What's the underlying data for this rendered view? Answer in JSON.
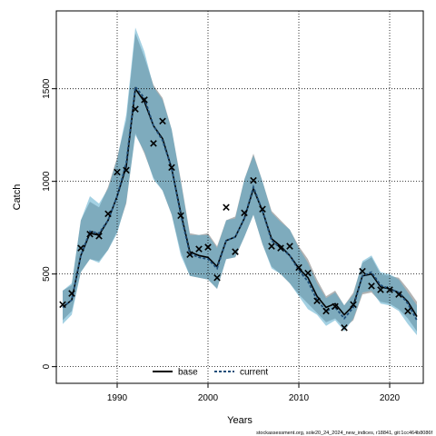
{
  "chart_data": {
    "type": "line",
    "xlabel": "Years",
    "ylabel": "Catch",
    "xlim": [
      1983.3,
      2023.7
    ],
    "ylim": [
      -90,
      1920
    ],
    "x_ticks": [
      1990,
      2000,
      2010,
      2020
    ],
    "y_ticks": [
      0,
      500,
      1000,
      1500
    ],
    "grid": true,
    "legend": {
      "position": "bottom-center",
      "entries": [
        "base",
        "current"
      ]
    },
    "caption": "stockassessment.org, sole20_24_2024_new_indices, r18841, git:1cc464b8086f",
    "colors": {
      "base_line": "#000000",
      "base_band": "#808080",
      "current_line": "#1f4e79",
      "current_band": "#4aa3c8",
      "observed": "#000000"
    },
    "x": [
      1984,
      1985,
      1986,
      1987,
      1988,
      1989,
      1990,
      1991,
      1992,
      1993,
      1994,
      1995,
      1996,
      1997,
      1998,
      1999,
      2000,
      2001,
      2002,
      2003,
      2004,
      2005,
      2006,
      2007,
      2008,
      2009,
      2010,
      2011,
      2012,
      2013,
      2014,
      2015,
      2016,
      2017,
      2018,
      2019,
      2020,
      2021,
      2022,
      2023
    ],
    "series": [
      {
        "name": "base",
        "values": [
          320,
          360,
          600,
          720,
          710,
          790,
          920,
          1080,
          1500,
          1430,
          1300,
          1230,
          1070,
          830,
          620,
          600,
          590,
          540,
          680,
          700,
          800,
          960,
          840,
          690,
          650,
          600,
          530,
          480,
          380,
          320,
          340,
          280,
          330,
          490,
          500,
          430,
          420,
          400,
          350,
          270
        ],
        "lower": [
          250,
          300,
          510,
          580,
          570,
          630,
          730,
          880,
          1260,
          1150,
          1020,
          950,
          820,
          620,
          490,
          480,
          470,
          420,
          580,
          590,
          700,
          820,
          660,
          540,
          500,
          450,
          390,
          340,
          290,
          240,
          260,
          210,
          250,
          390,
          400,
          350,
          340,
          310,
          260,
          190
        ],
        "upper": [
          410,
          440,
          790,
          890,
          860,
          970,
          1130,
          1330,
          1800,
          1670,
          1520,
          1450,
          1280,
          1010,
          720,
          710,
          720,
          650,
          790,
          810,
          1010,
          1150,
          1000,
          840,
          790,
          740,
          650,
          580,
          470,
          380,
          410,
          330,
          400,
          560,
          590,
          500,
          490,
          480,
          420,
          350
        ]
      },
      {
        "name": "current",
        "values": [
          320,
          360,
          600,
          730,
          720,
          790,
          920,
          1100,
          1510,
          1450,
          1300,
          1220,
          1070,
          820,
          610,
          590,
          580,
          530,
          680,
          700,
          800,
          970,
          840,
          680,
          640,
          600,
          520,
          460,
          360,
          300,
          320,
          260,
          320,
          490,
          510,
          440,
          420,
          400,
          340,
          250
        ],
        "lower": [
          230,
          280,
          510,
          580,
          560,
          630,
          720,
          890,
          1250,
          1160,
          1010,
          950,
          820,
          600,
          490,
          480,
          470,
          420,
          580,
          590,
          700,
          820,
          660,
          530,
          500,
          450,
          380,
          310,
          280,
          220,
          250,
          190,
          260,
          400,
          410,
          340,
          330,
          300,
          230,
          170
        ],
        "upper": [
          410,
          450,
          790,
          920,
          880,
          960,
          1120,
          1360,
          1830,
          1700,
          1510,
          1440,
          1280,
          1000,
          710,
          710,
          710,
          640,
          790,
          800,
          1010,
          1140,
          1000,
          830,
          780,
          740,
          640,
          560,
          450,
          370,
          400,
          330,
          390,
          570,
          600,
          510,
          500,
          470,
          400,
          330
        ]
      }
    ],
    "observed": {
      "x": [
        1984,
        1985,
        1986,
        1987,
        1988,
        1989,
        1990,
        1991,
        1992,
        1993,
        1994,
        1995,
        1996,
        1997,
        1998,
        1999,
        2000,
        2001,
        2002,
        2003,
        2004,
        2005,
        2006,
        2007,
        2008,
        2009,
        2010,
        2011,
        2012,
        2013,
        2014,
        2015,
        2016,
        2017,
        2018,
        2019,
        2020,
        2021,
        2022
      ],
      "y": [
        335,
        395,
        640,
        715,
        705,
        825,
        1050,
        1060,
        1390,
        1440,
        1205,
        1325,
        1075,
        815,
        605,
        635,
        645,
        480,
        860,
        620,
        830,
        1005,
        850,
        650,
        640,
        650,
        535,
        505,
        355,
        300,
        325,
        210,
        335,
        515,
        435,
        415,
        415,
        390,
        300
      ]
    }
  }
}
